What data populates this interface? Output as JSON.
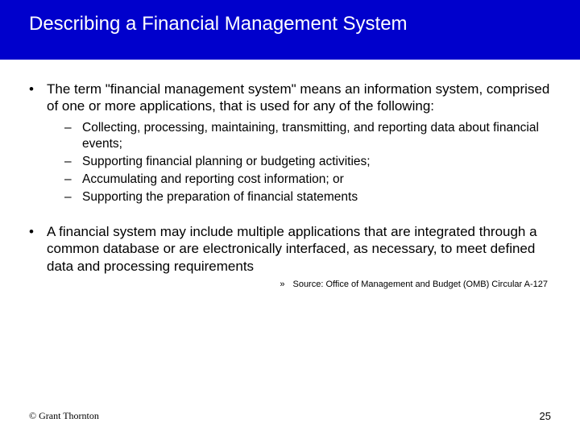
{
  "colors": {
    "band_bg": "#0000cc",
    "title_color": "#ffffff",
    "body_color": "#000000",
    "page_bg": "#ffffff"
  },
  "typography": {
    "title_fontsize": 24,
    "body_fontsize": 17,
    "sub_fontsize": 15.5,
    "source_fontsize": 11,
    "footer_fontsize": 12
  },
  "title": "Describing a Financial Management System",
  "bullets": [
    {
      "text": "The term \"financial management system\" means an information system, comprised of one or more applications, that is used for any of the following:",
      "sub": [
        "Collecting, processing, maintaining, transmitting, and reporting data about financial events;",
        "Supporting financial planning or budgeting activities;",
        "Accumulating and reporting cost information; or",
        "Supporting the preparation of financial statements"
      ]
    },
    {
      "text": "A financial system may include multiple applications that are integrated through a common database or are electronically interfaced, as necessary, to meet defined data and processing requirements",
      "sub": []
    }
  ],
  "source": {
    "marker": "»",
    "text": "Source: Office of Management and Budget (OMB) Circular A-127"
  },
  "footer": {
    "copyright": "© Grant Thornton",
    "page": "25"
  }
}
